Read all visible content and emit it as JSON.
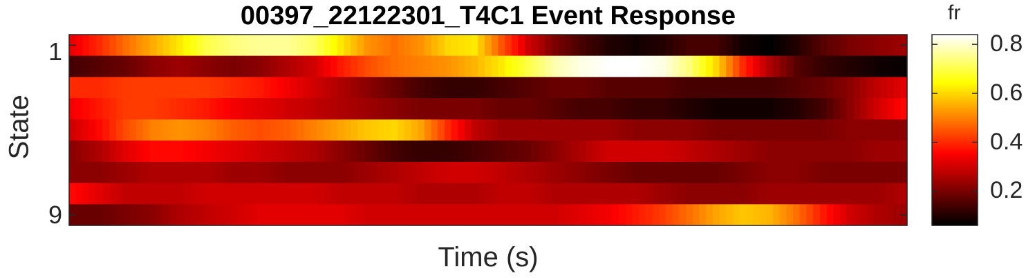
{
  "chart_data": {
    "type": "heatmap",
    "title": "00397_22122301_T4C1 Event Response",
    "xlabel": "Time (s)",
    "ylabel": "State",
    "yticks": [
      "1",
      "9"
    ],
    "colormap": "hot",
    "colorbar": {
      "label": "fr",
      "ticks": [
        0.2,
        0.4,
        0.6,
        0.8
      ],
      "tick_labels": [
        "0.2",
        "0.4",
        "0.6",
        "0.8"
      ],
      "clim": [
        0.06,
        0.84
      ]
    },
    "rows": [
      {
        "state": 1,
        "values": [
          0.33,
          0.4,
          0.48,
          0.55,
          0.62,
          0.7,
          0.74,
          0.76,
          0.76,
          0.72,
          0.62,
          0.52,
          0.48,
          0.52,
          0.6,
          0.62,
          0.45,
          0.3,
          0.2,
          0.14,
          0.1,
          0.08,
          0.1,
          0.14,
          0.14,
          0.08,
          0.06,
          0.1,
          0.16,
          0.2,
          0.22,
          0.24
        ]
      },
      {
        "state": 2,
        "values": [
          0.14,
          0.16,
          0.18,
          0.22,
          0.24,
          0.22,
          0.2,
          0.22,
          0.26,
          0.3,
          0.38,
          0.44,
          0.48,
          0.5,
          0.52,
          0.56,
          0.62,
          0.7,
          0.78,
          0.82,
          0.84,
          0.84,
          0.82,
          0.74,
          0.6,
          0.4,
          0.26,
          0.16,
          0.12,
          0.1,
          0.08,
          0.07
        ]
      },
      {
        "state": 3,
        "values": [
          0.4,
          0.4,
          0.42,
          0.42,
          0.42,
          0.42,
          0.4,
          0.38,
          0.34,
          0.3,
          0.26,
          0.22,
          0.18,
          0.14,
          0.12,
          0.12,
          0.14,
          0.16,
          0.18,
          0.18,
          0.16,
          0.16,
          0.16,
          0.14,
          0.14,
          0.14,
          0.14,
          0.16,
          0.18,
          0.22,
          0.28,
          0.32
        ]
      },
      {
        "state": 4,
        "values": [
          0.34,
          0.38,
          0.42,
          0.42,
          0.4,
          0.38,
          0.34,
          0.32,
          0.3,
          0.28,
          0.26,
          0.24,
          0.22,
          0.2,
          0.2,
          0.2,
          0.18,
          0.18,
          0.16,
          0.14,
          0.14,
          0.12,
          0.12,
          0.1,
          0.08,
          0.08,
          0.08,
          0.1,
          0.14,
          0.22,
          0.3,
          0.36
        ]
      },
      {
        "state": 5,
        "values": [
          0.3,
          0.36,
          0.44,
          0.5,
          0.52,
          0.5,
          0.46,
          0.44,
          0.46,
          0.5,
          0.54,
          0.58,
          0.6,
          0.54,
          0.4,
          0.28,
          0.24,
          0.24,
          0.24,
          0.24,
          0.24,
          0.22,
          0.22,
          0.22,
          0.2,
          0.2,
          0.2,
          0.2,
          0.2,
          0.22,
          0.22,
          0.22
        ]
      },
      {
        "state": 6,
        "values": [
          0.22,
          0.26,
          0.32,
          0.36,
          0.36,
          0.34,
          0.32,
          0.3,
          0.28,
          0.26,
          0.22,
          0.18,
          0.14,
          0.12,
          0.12,
          0.14,
          0.16,
          0.18,
          0.22,
          0.26,
          0.3,
          0.3,
          0.3,
          0.28,
          0.26,
          0.24,
          0.22,
          0.22,
          0.22,
          0.22,
          0.24,
          0.24
        ]
      },
      {
        "state": 7,
        "values": [
          0.22,
          0.22,
          0.24,
          0.26,
          0.26,
          0.26,
          0.24,
          0.24,
          0.22,
          0.22,
          0.22,
          0.24,
          0.26,
          0.28,
          0.3,
          0.3,
          0.28,
          0.26,
          0.24,
          0.22,
          0.2,
          0.18,
          0.18,
          0.18,
          0.18,
          0.2,
          0.22,
          0.22,
          0.2,
          0.2,
          0.2,
          0.2
        ]
      },
      {
        "state": 8,
        "values": [
          0.36,
          0.32,
          0.28,
          0.28,
          0.28,
          0.3,
          0.3,
          0.3,
          0.3,
          0.3,
          0.28,
          0.28,
          0.28,
          0.26,
          0.26,
          0.26,
          0.28,
          0.28,
          0.26,
          0.26,
          0.26,
          0.26,
          0.24,
          0.22,
          0.22,
          0.22,
          0.24,
          0.24,
          0.24,
          0.24,
          0.24,
          0.26
        ]
      },
      {
        "state": 9,
        "values": [
          0.18,
          0.18,
          0.2,
          0.22,
          0.26,
          0.28,
          0.3,
          0.32,
          0.32,
          0.32,
          0.32,
          0.3,
          0.3,
          0.3,
          0.3,
          0.3,
          0.3,
          0.3,
          0.3,
          0.32,
          0.34,
          0.38,
          0.42,
          0.48,
          0.54,
          0.58,
          0.56,
          0.48,
          0.38,
          0.3,
          0.26,
          0.24
        ]
      }
    ]
  }
}
